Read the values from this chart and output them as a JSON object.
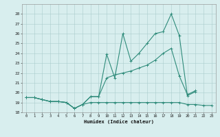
{
  "x": [
    0,
    1,
    2,
    3,
    4,
    5,
    6,
    7,
    8,
    9,
    10,
    11,
    12,
    13,
    14,
    15,
    16,
    17,
    18,
    19,
    20,
    21,
    22,
    23
  ],
  "line1": [
    19.5,
    19.5,
    19.3,
    19.1,
    19.1,
    19.0,
    18.4,
    18.8,
    19.6,
    19.6,
    23.9,
    21.5,
    26.0,
    23.2,
    24.0,
    25.0,
    26.0,
    26.2,
    28.0,
    25.8,
    19.7,
    20.1,
    null,
    null
  ],
  "line2": [
    19.5,
    19.5,
    19.3,
    19.1,
    19.1,
    19.0,
    18.4,
    18.8,
    19.6,
    19.6,
    21.5,
    21.8,
    22.0,
    22.2,
    22.5,
    22.8,
    23.3,
    24.0,
    24.5,
    21.7,
    19.8,
    20.2,
    null,
    null
  ],
  "line3": [
    19.5,
    19.5,
    19.3,
    19.1,
    19.1,
    19.0,
    18.4,
    18.8,
    19.0,
    19.0,
    19.0,
    19.0,
    19.0,
    19.0,
    19.0,
    19.0,
    19.0,
    19.0,
    19.0,
    19.0,
    18.8,
    18.8,
    18.7,
    18.7
  ],
  "color": "#2e8b7a",
  "bg_color": "#d8eeee",
  "grid_color": "#aacccc",
  "xlabel": "Humidex (Indice chaleur)",
  "ylim": [
    18,
    29
  ],
  "xlim": [
    -0.5,
    23.5
  ],
  "yticks": [
    18,
    19,
    20,
    21,
    22,
    23,
    24,
    25,
    26,
    27,
    28
  ],
  "xticks": [
    0,
    1,
    2,
    3,
    4,
    5,
    6,
    7,
    8,
    9,
    10,
    11,
    12,
    13,
    14,
    15,
    16,
    17,
    18,
    19,
    20,
    21,
    22,
    23
  ]
}
